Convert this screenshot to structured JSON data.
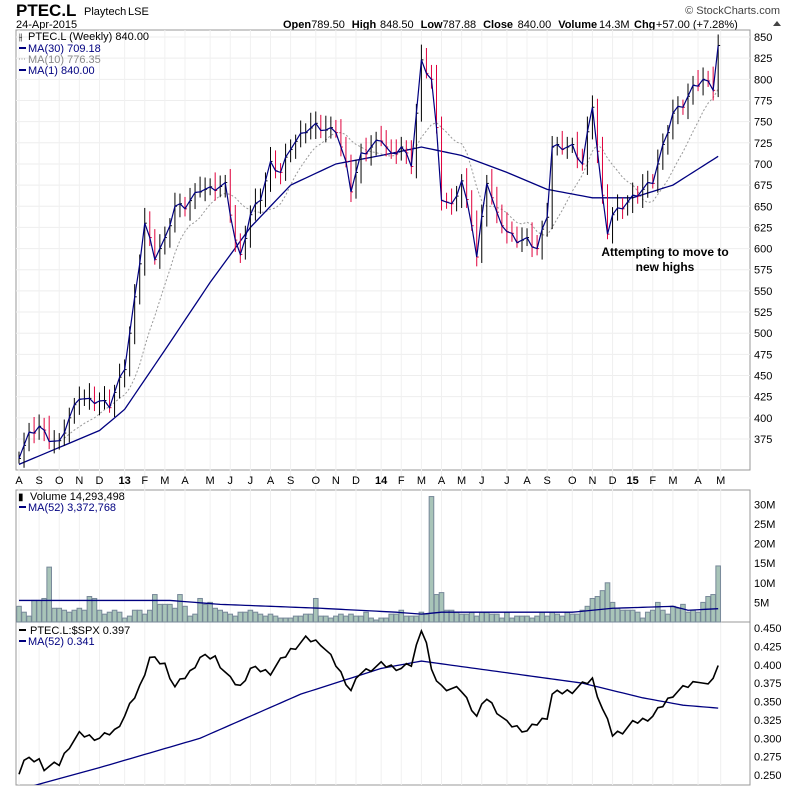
{
  "header": {
    "symbol": "PTEC.L",
    "name": "Playtech",
    "exchange": "LSE",
    "date": "24-Apr-2015",
    "copyright": "© StockCharts.com",
    "quote": [
      {
        "k": "Open",
        "v": "789.50"
      },
      {
        "k": "High",
        "v": "848.50"
      },
      {
        "k": "Low",
        "v": "787.88"
      },
      {
        "k": "Close",
        "v": "840.00"
      },
      {
        "k": "Volume",
        "v": "14.3M"
      },
      {
        "k": "Chg",
        "v": "+57.00 (+7.28%)"
      }
    ]
  },
  "legend": {
    "price": "PTEC.L (Weekly) 840.00",
    "ma30": "MA(30) 709.18",
    "ma10": "MA(10) 776.35",
    "ma1": "MA(1) 840.00",
    "volume": "Volume 14,293,498",
    "vol_ma": "MA(52) 3,372,768",
    "ratio": "PTEC.L:$SPX 0.397",
    "ratio_ma": "MA(52) 0.341"
  },
  "annotation": [
    "Attempting to move to",
    "new highs"
  ],
  "colors": {
    "price": "#000080",
    "up": "#000000",
    "down": "#e0003c",
    "ma10": "#999999",
    "volume": "#a8c4b8",
    "ratio": "#000000"
  },
  "chart_data": [
    {
      "type": "line",
      "title": "PTEC.L (Weekly)",
      "ylim": [
        340,
        860
      ],
      "yticks": [
        850,
        825,
        800,
        775,
        750,
        725,
        700,
        675,
        650,
        625,
        600,
        575,
        550,
        525,
        500,
        475,
        450,
        425,
        400,
        375
      ],
      "xticks": [
        "A",
        "S",
        "O",
        "N",
        "D",
        "13",
        "F",
        "M",
        "A",
        "M",
        "J",
        "J",
        "A",
        "S",
        "O",
        "N",
        "D",
        "14",
        "F",
        "M",
        "A",
        "M",
        "J",
        "J",
        "A",
        "S",
        "O",
        "N",
        "D",
        "15",
        "F",
        "M",
        "A",
        "M"
      ],
      "xtick_weeks": [
        0,
        4,
        8,
        12,
        16,
        21,
        25,
        29,
        33,
        38,
        42,
        46,
        50,
        54,
        59,
        63,
        67,
        72,
        76,
        80,
        84,
        88,
        92,
        97,
        101,
        105,
        110,
        114,
        118,
        122,
        126,
        130,
        135,
        139.5
      ],
      "close_keypoints": [
        [
          0,
          355
        ],
        [
          2,
          380
        ],
        [
          4,
          390
        ],
        [
          6,
          375
        ],
        [
          8,
          370
        ],
        [
          10,
          400
        ],
        [
          12,
          425
        ],
        [
          14,
          420
        ],
        [
          16,
          420
        ],
        [
          18,
          415
        ],
        [
          21,
          460
        ],
        [
          23,
          540
        ],
        [
          25,
          630
        ],
        [
          27,
          590
        ],
        [
          29,
          610
        ],
        [
          31,
          650
        ],
        [
          33,
          650
        ],
        [
          36,
          670
        ],
        [
          38,
          670
        ],
        [
          41,
          675
        ],
        [
          43,
          610
        ],
        [
          44,
          590
        ],
        [
          46,
          640
        ],
        [
          48,
          660
        ],
        [
          50,
          700
        ],
        [
          52,
          690
        ],
        [
          54,
          720
        ],
        [
          57,
          740
        ],
        [
          59,
          745
        ],
        [
          61,
          740
        ],
        [
          63,
          740
        ],
        [
          65,
          700
        ],
        [
          66,
          670
        ],
        [
          68,
          710
        ],
        [
          70,
          720
        ],
        [
          72,
          730
        ],
        [
          74,
          710
        ],
        [
          76,
          720
        ],
        [
          78,
          700
        ],
        [
          80,
          820
        ],
        [
          82,
          800
        ],
        [
          83,
          740
        ],
        [
          84,
          660
        ],
        [
          86,
          650
        ],
        [
          88,
          680
        ],
        [
          90,
          630
        ],
        [
          91,
          590
        ],
        [
          93,
          680
        ],
        [
          95,
          640
        ],
        [
          97,
          620
        ],
        [
          99,
          610
        ],
        [
          101,
          610
        ],
        [
          103,
          600
        ],
        [
          105,
          640
        ],
        [
          106,
          720
        ],
        [
          108,
          720
        ],
        [
          110,
          720
        ],
        [
          112,
          700
        ],
        [
          114,
          770
        ],
        [
          116,
          660
        ],
        [
          117,
          620
        ],
        [
          118,
          640
        ],
        [
          120,
          650
        ],
        [
          122,
          660
        ],
        [
          124,
          670
        ],
        [
          126,
          680
        ],
        [
          128,
          720
        ],
        [
          130,
          760
        ],
        [
          132,
          770
        ],
        [
          134,
          790
        ],
        [
          136,
          800
        ],
        [
          138,
          790
        ],
        [
          139,
          840
        ]
      ],
      "ma30_keypoints": [
        [
          0,
          345
        ],
        [
          8,
          365
        ],
        [
          16,
          385
        ],
        [
          21,
          410
        ],
        [
          29,
          480
        ],
        [
          38,
          560
        ],
        [
          46,
          625
        ],
        [
          54,
          675
        ],
        [
          63,
          700
        ],
        [
          72,
          710
        ],
        [
          80,
          720
        ],
        [
          88,
          710
        ],
        [
          97,
          690
        ],
        [
          105,
          670
        ],
        [
          114,
          660
        ],
        [
          122,
          660
        ],
        [
          130,
          675
        ],
        [
          139,
          709
        ]
      ]
    },
    {
      "type": "bar",
      "title": "Volume",
      "unit": "M",
      "ylim": [
        0,
        33
      ],
      "yticks": [
        "30M",
        "25M",
        "20M",
        "15M",
        "10M",
        "5M"
      ],
      "ytick_values": [
        30,
        25,
        20,
        15,
        10,
        5
      ],
      "values": [
        4,
        2.5,
        1.5,
        5.5,
        5.5,
        6,
        14,
        3.5,
        3.5,
        3,
        2.5,
        3,
        3.5,
        3,
        6.5,
        6,
        3,
        2,
        2.5,
        3,
        2.5,
        1,
        1.5,
        3,
        3,
        2,
        3,
        7,
        4.5,
        4.5,
        4.5,
        3.5,
        7,
        4,
        1.5,
        2,
        6,
        4.5,
        5,
        3.5,
        3,
        2.5,
        2,
        1.5,
        2.5,
        2.5,
        3,
        2.5,
        2,
        1.5,
        2,
        1.5,
        1,
        1,
        1,
        1.5,
        1.5,
        2,
        2,
        6,
        1.5,
        1.5,
        1,
        1.5,
        2,
        1.5,
        2,
        1.5,
        1.5,
        2.5,
        1,
        0.5,
        1,
        1,
        2,
        2,
        3,
        1.5,
        1.5,
        1.5,
        2.5,
        2,
        32,
        7,
        7.5,
        3,
        3,
        2.5,
        2,
        2,
        2.5,
        1.5,
        2.5,
        2.5,
        2,
        2,
        1,
        2.5,
        1,
        1.5,
        1.5,
        1.5,
        1,
        1.5,
        2.5,
        1.5,
        2.5,
        2,
        1.5,
        2.5,
        2,
        2,
        3,
        4,
        6,
        6.5,
        8,
        10,
        5,
        3.5,
        3,
        3,
        3,
        2.5,
        1,
        2.5,
        3,
        5,
        3,
        2,
        4,
        3.5,
        4.5,
        2.5,
        3,
        2.5,
        5,
        6.5,
        7,
        14.3
      ],
      "ma52_keypoints": [
        [
          0,
          5.5
        ],
        [
          30,
          5.5
        ],
        [
          40,
          4.5
        ],
        [
          60,
          3.5
        ],
        [
          75,
          2.5
        ],
        [
          80,
          2
        ],
        [
          84,
          2.5
        ],
        [
          110,
          2.5
        ],
        [
          118,
          3.5
        ],
        [
          130,
          4
        ],
        [
          133,
          3
        ],
        [
          139,
          3.4
        ]
      ]
    },
    {
      "type": "line",
      "title": "PTEC.L:$SPX",
      "ylim": [
        0.24,
        0.46
      ],
      "yticks": [
        "0.450",
        "0.425",
        "0.400",
        "0.375",
        "0.350",
        "0.325",
        "0.300",
        "0.275",
        "0.250"
      ],
      "ratio_keypoints": [
        [
          0,
          0.255
        ],
        [
          1,
          0.27
        ],
        [
          4,
          0.27
        ],
        [
          5,
          0.26
        ],
        [
          8,
          0.265
        ],
        [
          10,
          0.29
        ],
        [
          12,
          0.305
        ],
        [
          16,
          0.3
        ],
        [
          19,
          0.31
        ],
        [
          21,
          0.33
        ],
        [
          24,
          0.37
        ],
        [
          26,
          0.41
        ],
        [
          29,
          0.4
        ],
        [
          31,
          0.37
        ],
        [
          34,
          0.39
        ],
        [
          36,
          0.41
        ],
        [
          39,
          0.41
        ],
        [
          42,
          0.38
        ],
        [
          44,
          0.37
        ],
        [
          46,
          0.395
        ],
        [
          50,
          0.39
        ],
        [
          54,
          0.42
        ],
        [
          57,
          0.435
        ],
        [
          60,
          0.43
        ],
        [
          63,
          0.4
        ],
        [
          66,
          0.365
        ],
        [
          68,
          0.39
        ],
        [
          72,
          0.4
        ],
        [
          76,
          0.395
        ],
        [
          78,
          0.4
        ],
        [
          80,
          0.45
        ],
        [
          81,
          0.43
        ],
        [
          82,
          0.39
        ],
        [
          84,
          0.37
        ],
        [
          88,
          0.365
        ],
        [
          91,
          0.33
        ],
        [
          93,
          0.355
        ],
        [
          97,
          0.32
        ],
        [
          101,
          0.31
        ],
        [
          105,
          0.33
        ],
        [
          106,
          0.36
        ],
        [
          110,
          0.365
        ],
        [
          114,
          0.38
        ],
        [
          116,
          0.34
        ],
        [
          118,
          0.305
        ],
        [
          120,
          0.31
        ],
        [
          122,
          0.32
        ],
        [
          126,
          0.33
        ],
        [
          130,
          0.36
        ],
        [
          134,
          0.375
        ],
        [
          135,
          0.38
        ],
        [
          137,
          0.37
        ],
        [
          139,
          0.397
        ]
      ],
      "ma52_keypoints": [
        [
          0,
          0.23
        ],
        [
          16,
          0.26
        ],
        [
          36,
          0.3
        ],
        [
          56,
          0.36
        ],
        [
          72,
          0.395
        ],
        [
          80,
          0.405
        ],
        [
          96,
          0.39
        ],
        [
          112,
          0.375
        ],
        [
          124,
          0.355
        ],
        [
          132,
          0.345
        ],
        [
          139,
          0.341
        ]
      ]
    }
  ]
}
